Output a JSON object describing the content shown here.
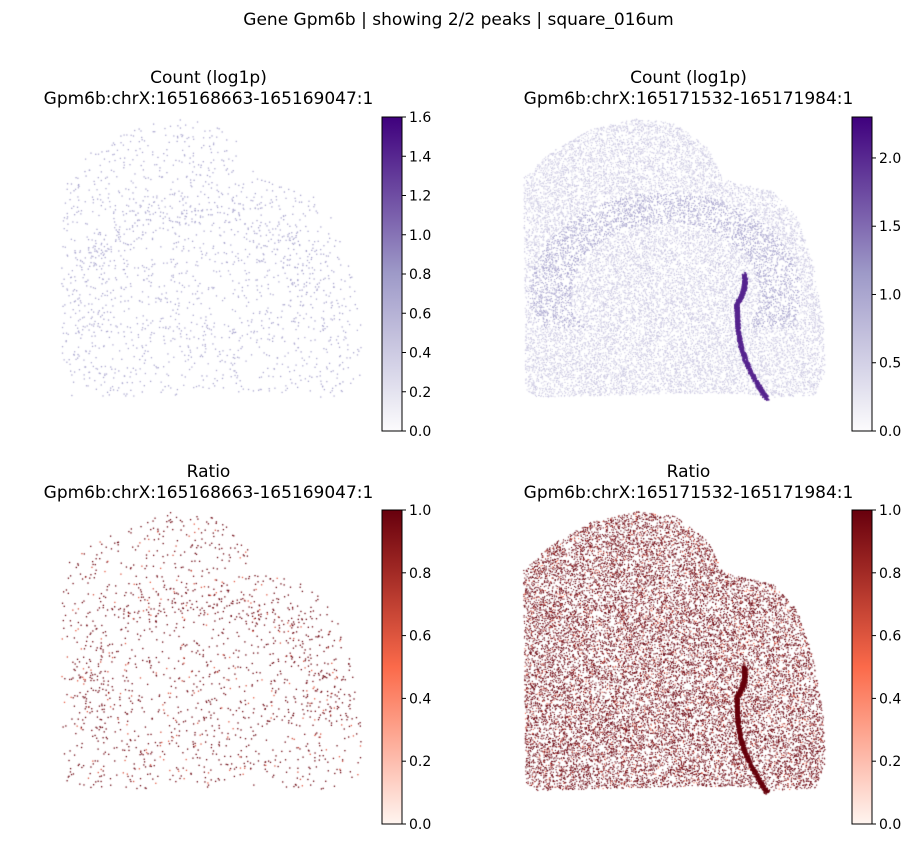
{
  "figure": {
    "suptitle": "Gene Gpm6b | showing 2/2 peaks | square_016um"
  },
  "chart_data": [
    {
      "type": "scatter",
      "title": "Count (log1p)",
      "subtitle": "Gpm6b:chrX:165168663-165169047:1",
      "colormap": "Purples",
      "colors": {
        "low": "#fcfbfd",
        "mid": "#9e9ac8",
        "high": "#3f007d"
      },
      "colorbar": {
        "range": [
          0,
          1.6
        ],
        "ticks": [
          "0.0",
          "0.2",
          "0.4",
          "0.6",
          "0.8",
          "1.0",
          "1.2",
          "1.4",
          "1.6"
        ]
      },
      "density": "sparse",
      "typical_value": 0.69,
      "axes_visible": false
    },
    {
      "type": "scatter",
      "title": "Count (log1p)",
      "subtitle": "Gpm6b:chrX:165171532-165171984:1",
      "colormap": "Purples",
      "colors": {
        "low": "#fcfbfd",
        "mid": "#9e9ac8",
        "high": "#3f007d"
      },
      "colorbar": {
        "range": [
          0,
          2.3
        ],
        "ticks": [
          "0.0",
          "0.5",
          "1.0",
          "1.5",
          "2.0"
        ]
      },
      "density": "dense",
      "typical_value": 0.69,
      "axes_visible": false
    },
    {
      "type": "scatter",
      "title": "Ratio",
      "subtitle": "Gpm6b:chrX:165168663-165169047:1",
      "colormap": "Reds",
      "colors": {
        "low": "#fff5f0",
        "mid": "#fb6a4a",
        "high": "#67000d"
      },
      "colorbar": {
        "range": [
          0,
          1.0
        ],
        "ticks": [
          "0.0",
          "0.2",
          "0.4",
          "0.6",
          "0.8",
          "1.0"
        ]
      },
      "density": "sparse",
      "typical_value": 1.0,
      "axes_visible": false
    },
    {
      "type": "scatter",
      "title": "Ratio",
      "subtitle": "Gpm6b:chrX:165171532-165171984:1",
      "colormap": "Reds",
      "colors": {
        "low": "#fff5f0",
        "mid": "#fb6a4a",
        "high": "#67000d"
      },
      "colorbar": {
        "range": [
          0,
          1.0
        ],
        "ticks": [
          "0.0",
          "0.2",
          "0.4",
          "0.6",
          "0.8",
          "1.0"
        ]
      },
      "density": "dense",
      "typical_value": 1.0,
      "axes_visible": false
    }
  ]
}
